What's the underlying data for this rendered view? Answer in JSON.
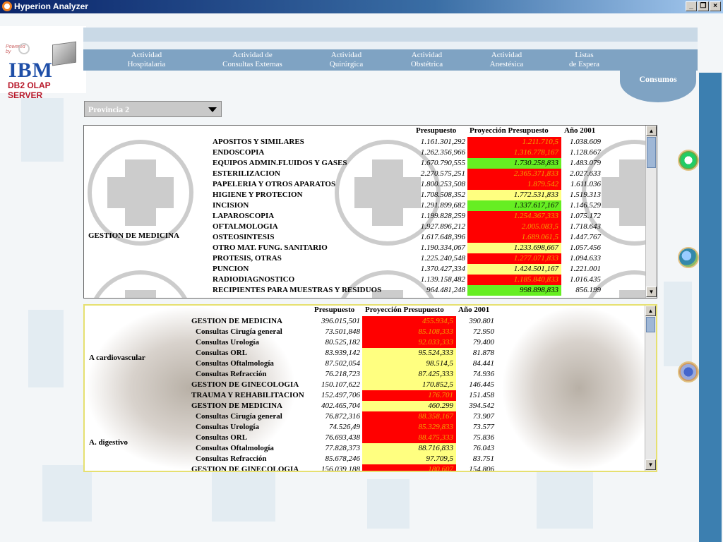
{
  "window": {
    "title": "Hyperion Analyzer"
  },
  "logo": {
    "powered": "Powered by",
    "brand": "IBM",
    "product": "DB2 OLAP SERVER"
  },
  "nav": [
    {
      "l1": "Actividad",
      "l2": "Hospitalaria"
    },
    {
      "l1": "Actividad de",
      "l2": "Consultas Externas"
    },
    {
      "l1": "Actividad",
      "l2": "Quirúrgica"
    },
    {
      "l1": "Actividad",
      "l2": "Obstétrica"
    },
    {
      "l1": "Actividad",
      "l2": "Anestésica"
    },
    {
      "l1": "Listas",
      "l2": "de Espera"
    }
  ],
  "active_tab": "Consumos",
  "filter": {
    "selected": "Provincia 2"
  },
  "grid1": {
    "headers": [
      "Presupuesto",
      "Proyección Presupuesto",
      "Año 2001"
    ],
    "group": "GESTION DE MEDICINA",
    "rows": [
      {
        "label": "APOSITOS Y SIMILARES",
        "p": "1.161.301,292",
        "proj": "1.211.710,5",
        "status": "red",
        "y": "1.038.609"
      },
      {
        "label": "ENDOSCOPIA",
        "p": "1.262.356,966",
        "proj": "1.316.778,167",
        "status": "red",
        "y": "1.128.667"
      },
      {
        "label": "EQUIPOS ADMIN.FLUIDOS Y GASES",
        "p": "1.670.790,555",
        "proj": "1.730.258,833",
        "status": "green",
        "y": "1.483.079"
      },
      {
        "label": "ESTERILIZACION",
        "p": "2.270.575,251",
        "proj": "2.365.371,833",
        "status": "red",
        "y": "2.027.633"
      },
      {
        "label": "PAPELERIA Y OTROS APARATOS",
        "p": "1.800.253,508",
        "proj": "1.879.542",
        "status": "red",
        "y": "1.611.036"
      },
      {
        "label": "HIGIENE Y PROTECION",
        "p": "1.708.508,352",
        "proj": "1.772.531,833",
        "status": "yellow",
        "y": "1.519.313"
      },
      {
        "label": "INCISION",
        "p": "1.291.899,682",
        "proj": "1.337.617,167",
        "status": "green",
        "y": "1.146.529"
      },
      {
        "label": "LAPAROSCOPIA",
        "p": "1.199.828,259",
        "proj": "1.254.367,333",
        "status": "red",
        "y": "1.075.172"
      },
      {
        "label": "OFTALMOLOGIA",
        "p": "1.927.896,212",
        "proj": "2.005.083,5",
        "status": "red",
        "y": "1.718.643"
      },
      {
        "label": "OSTEOSINTESIS",
        "p": "1.617.648,396",
        "proj": "1.689.061,5",
        "status": "red",
        "y": "1.447.767"
      },
      {
        "label": "OTRO MAT. FUNG. SANITARIO",
        "p": "1.190.334,067",
        "proj": "1.233.698,667",
        "status": "yellow",
        "y": "1.057.456"
      },
      {
        "label": "PROTESIS, OTRAS",
        "p": "1.225.240,548",
        "proj": "1.277.071,833",
        "status": "red",
        "y": "1.094.633"
      },
      {
        "label": "PUNCION",
        "p": "1.370.427,334",
        "proj": "1.424.501,167",
        "status": "yellow",
        "y": "1.221.001"
      },
      {
        "label": "RADIODIAGNOSTICO",
        "p": "1.139.158,482",
        "proj": "1.185.840,833",
        "status": "red",
        "y": "1.016.435"
      },
      {
        "label": "RECIPIENTES PARA MUESTRAS Y RESIDUOS",
        "p": "964.481,248",
        "proj": "998.898,833",
        "status": "green",
        "y": "856.199"
      }
    ]
  },
  "grid2": {
    "headers": [
      "Presupuesto",
      "Proyección Presupuesto",
      "Año 2001"
    ],
    "groups": [
      {
        "name": "A cardiovascular",
        "first_row": 0,
        "last_row": 7
      },
      {
        "name": "A. digestivo",
        "first_row": 8,
        "last_row": 14
      }
    ],
    "rows": [
      {
        "label": "GESTION DE MEDICINA",
        "indent": false,
        "p": "396.015,501",
        "proj": "455.934,5",
        "status": "red",
        "y": "390.801"
      },
      {
        "label": "Consultas Cirugía general",
        "indent": true,
        "p": "73.501,848",
        "proj": "85.108,333",
        "status": "red",
        "y": "72.950"
      },
      {
        "label": "Consultas Urología",
        "indent": true,
        "p": "80.525,182",
        "proj": "92.033,333",
        "status": "red",
        "y": "79.400"
      },
      {
        "label": "Consultas ORL",
        "indent": true,
        "p": "83.939,142",
        "proj": "95.524,333",
        "status": "yellow",
        "y": "81.878"
      },
      {
        "label": "Consultas Oftalmología",
        "indent": true,
        "p": "87.502,054",
        "proj": "98.514,5",
        "status": "yellow",
        "y": "84.441"
      },
      {
        "label": "Consultas Refracción",
        "indent": true,
        "p": "76.218,723",
        "proj": "87.425,333",
        "status": "yellow",
        "y": "74.936"
      },
      {
        "label": "GESTION DE GINECOLOGIA",
        "indent": false,
        "p": "150.107,622",
        "proj": "170.852,5",
        "status": "yellow",
        "y": "146.445"
      },
      {
        "label": "TRAUMA Y REHABILITACION",
        "indent": false,
        "p": "152.497,706",
        "proj": "176.701",
        "status": "red",
        "y": "151.458"
      },
      {
        "label": "GESTION DE MEDICINA",
        "indent": false,
        "p": "402.465,704",
        "proj": "460.299",
        "status": "yellow",
        "y": "394.542"
      },
      {
        "label": "Consultas Cirugía general",
        "indent": true,
        "p": "76.872,316",
        "proj": "88.358,167",
        "status": "red",
        "y": "73.907"
      },
      {
        "label": "Consultas Urología",
        "indent": true,
        "p": "74.526,49",
        "proj": "85.329,833",
        "status": "red",
        "y": "73.577"
      },
      {
        "label": "Consultas ORL",
        "indent": true,
        "p": "76.693,438",
        "proj": "88.475,333",
        "status": "red",
        "y": "75.836"
      },
      {
        "label": "Consultas Oftalmología",
        "indent": true,
        "p": "77.828,373",
        "proj": "88.716,833",
        "status": "yellow",
        "y": "76.043"
      },
      {
        "label": "Consultas Refracción",
        "indent": true,
        "p": "85.678,246",
        "proj": "97.709,5",
        "status": "yellow",
        "y": "83.751"
      },
      {
        "label": "GESTION DE GINECOLOGIA",
        "indent": false,
        "p": "156.039,188",
        "proj": "180.607",
        "status": "red",
        "y": "154.806"
      }
    ]
  },
  "colors": {
    "red": "#ff0000",
    "yellow": "#ffff80",
    "green": "#66ee22",
    "nav": "#7fa3c3",
    "rail": "#3c7fb0"
  }
}
